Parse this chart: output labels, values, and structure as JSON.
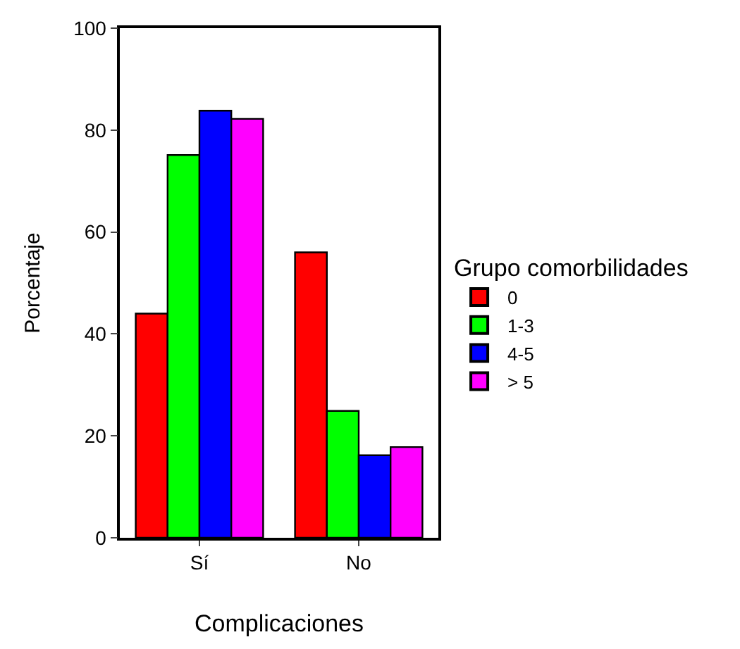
{
  "chart_data": {
    "type": "bar",
    "xlabel": "Complicaciones",
    "ylabel": "Porcentaje",
    "legend_title": "Grupo comorbilidades",
    "categories": [
      "Sí",
      "No"
    ],
    "series": [
      {
        "name": "0",
        "color": "#ff0000",
        "values": [
          44,
          56
        ]
      },
      {
        "name": "1-3",
        "color": "#00ff00",
        "values": [
          75.1,
          24.9
        ]
      },
      {
        "name": "4-5",
        "color": "#0000ff",
        "values": [
          83.8,
          16.2
        ]
      },
      {
        "name": "> 5",
        "color": "#ff00ff",
        "values": [
          82.2,
          17.8
        ]
      }
    ],
    "ylim": [
      0,
      100
    ],
    "yticks": [
      0,
      20,
      40,
      60,
      80,
      100
    ],
    "grid": false,
    "legend": "right"
  }
}
